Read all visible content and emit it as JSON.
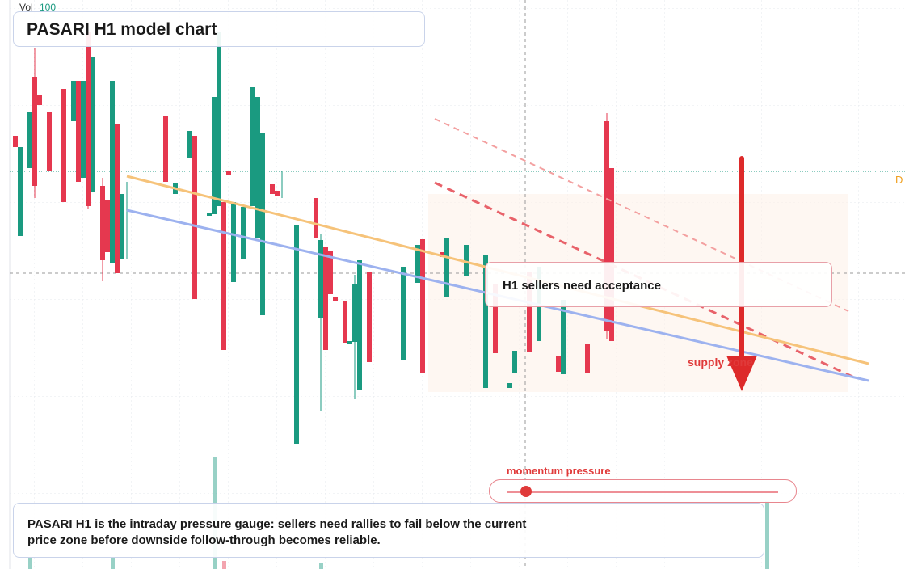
{
  "header": {
    "volume_label": "Vol",
    "volume_value": "100",
    "title": "PASARI H1 model chart",
    "edge_label": "D"
  },
  "annotations": {
    "callout": "H1 sellers need acceptance",
    "zone_label": "supply zone"
  },
  "slider": {
    "label": "momentum pressure"
  },
  "note": {
    "text": "PASARI H1 is the intraday pressure gauge: sellers need rallies to fail below the current price zone before downside follow-through becomes reliable."
  }
}
